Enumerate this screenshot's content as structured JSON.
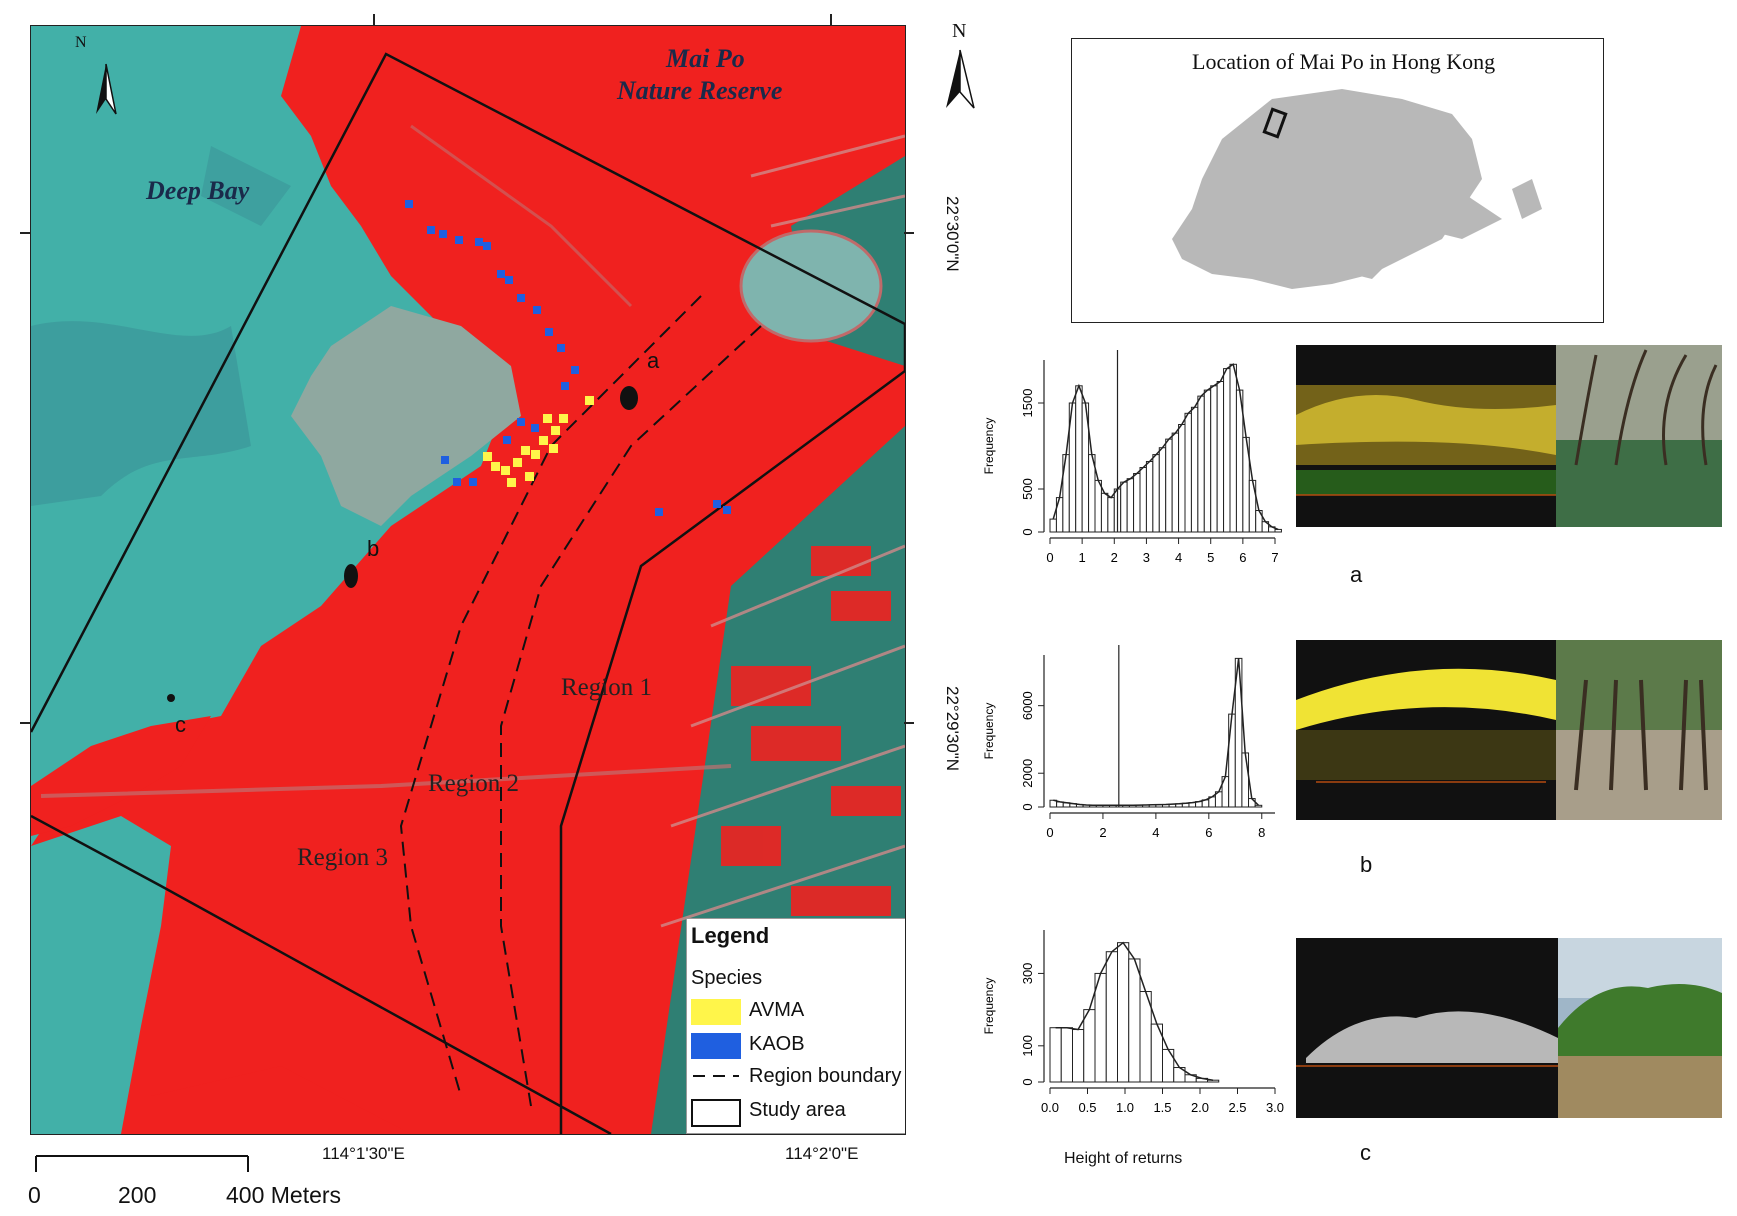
{
  "map": {
    "north_label": "N",
    "water_label_1": "Deep Bay",
    "reserve_label_line1": "Mai Po",
    "reserve_label_line2": "Nature Reserve",
    "point_a": "a",
    "point_b": "b",
    "point_c": "c",
    "region_1": "Region 1",
    "region_2": "Region 2",
    "region_3": "Region 3",
    "x_tick_1": "114°1'30\"E",
    "x_tick_2": "114°2'0\"E",
    "y_tick_1": "22°30'0\"N",
    "y_tick_2": "22°29'30\"N",
    "scale_0": "0",
    "scale_200": "200",
    "scale_400": "400 Meters"
  },
  "legend": {
    "title": "Legend",
    "subtitle": "Species",
    "items": [
      {
        "label": "AVMA",
        "color": "#fff54a"
      },
      {
        "label": "KAOB",
        "color": "#1f5fe0"
      },
      {
        "label": "Region boundary"
      },
      {
        "label": "Study area"
      }
    ]
  },
  "inset": {
    "north_label": "N",
    "title": "Location of Mai Po in Hong Kong"
  },
  "colors": {
    "water": "#42b0a8",
    "mangrove_red": "#f0211f",
    "mudflat": "#8fa8a0",
    "ponds": "#2f7f73",
    "land_gray": "#b8b8b8"
  },
  "panels": [
    {
      "letter": "a",
      "ylabel": "Frequency"
    },
    {
      "letter": "b",
      "ylabel": "Frequency"
    },
    {
      "letter": "c",
      "ylabel": "Frequency",
      "xlabel": "Height of returns"
    }
  ],
  "chart_data": [
    {
      "type": "bar",
      "panel": "a",
      "x_ticks": [
        "0",
        "1",
        "2",
        "3",
        "4",
        "5",
        "6",
        "7"
      ],
      "y_ticks": [
        "0",
        "500",
        "1500"
      ],
      "xlim": [
        0,
        7
      ],
      "ylim": [
        0,
        2000
      ],
      "bin_width": 0.2,
      "threshold_x": 2.1,
      "values": [
        150,
        400,
        900,
        1500,
        1700,
        1500,
        900,
        600,
        450,
        400,
        500,
        580,
        620,
        680,
        750,
        820,
        900,
        980,
        1080,
        1150,
        1250,
        1380,
        1450,
        1580,
        1650,
        1700,
        1750,
        1900,
        1950,
        1650,
        1100,
        600,
        250,
        120,
        60,
        30
      ]
    },
    {
      "type": "bar",
      "panel": "b",
      "x_ticks": [
        "0",
        "2",
        "4",
        "6",
        "8"
      ],
      "y_ticks": [
        "0",
        "2000",
        "6000"
      ],
      "xlim": [
        0,
        8.5
      ],
      "ylim": [
        0,
        9000
      ],
      "bin_width": 0.25,
      "threshold_x": 2.6,
      "values": [
        400,
        300,
        250,
        200,
        150,
        120,
        100,
        100,
        100,
        100,
        100,
        100,
        100,
        110,
        120,
        130,
        140,
        150,
        170,
        190,
        220,
        260,
        320,
        420,
        600,
        900,
        1800,
        5500,
        8800,
        3200,
        500,
        100
      ]
    },
    {
      "type": "bar",
      "panel": "c",
      "x_ticks": [
        "0.0",
        "0.5",
        "1.0",
        "1.5",
        "2.0",
        "2.5",
        "3.0"
      ],
      "y_ticks": [
        "0",
        "100",
        "300"
      ],
      "xlim": [
        0,
        3.0
      ],
      "ylim": [
        0,
        420
      ],
      "bin_width": 0.15,
      "values": [
        150,
        150,
        145,
        200,
        300,
        360,
        385,
        340,
        250,
        160,
        90,
        40,
        20,
        10,
        5
      ]
    }
  ]
}
